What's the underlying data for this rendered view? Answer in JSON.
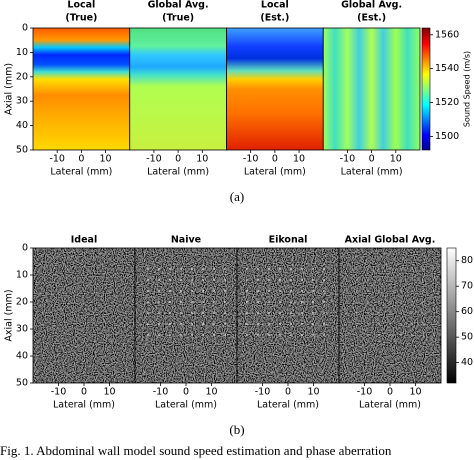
{
  "chart_data": [
    {
      "type": "heatmap",
      "panels": [
        {
          "title": [
            "Local",
            "(True)"
          ]
        },
        {
          "title": [
            "Global Avg.",
            "(True)"
          ]
        },
        {
          "title": [
            "Local",
            "(Est.)"
          ]
        },
        {
          "title": [
            "Global Avg.",
            "(Est.)"
          ]
        }
      ],
      "xlabel": "Lateral (mm)",
      "ylabel": "Axial (mm)",
      "xlim": [
        -20,
        20
      ],
      "xticks": [
        -10,
        0,
        10
      ],
      "ylim": [
        0,
        50
      ],
      "yticks": [
        0,
        10,
        20,
        30,
        40,
        50
      ],
      "colorbar": {
        "label": "Sound Speed (m/s)",
        "lim": [
          1492,
          1564
        ],
        "ticks": [
          1500,
          1520,
          1540,
          1560
        ],
        "colormap": "jet"
      },
      "caption": "(a)"
    },
    {
      "type": "heatmap",
      "panels": [
        {
          "title": [
            "Ideal"
          ]
        },
        {
          "title": [
            "Naive"
          ]
        },
        {
          "title": [
            "Eikonal"
          ]
        },
        {
          "title": [
            "Axial Global Avg."
          ]
        }
      ],
      "xlabel": "Lateral (mm)",
      "ylabel": "Axial (mm)",
      "xlim": [
        -20,
        20
      ],
      "xticks": [
        -10,
        0,
        10
      ],
      "ylim": [
        0,
        50
      ],
      "yticks": [
        0,
        10,
        20,
        30,
        40,
        50
      ],
      "colorbar": {
        "lim": [
          32,
          85
        ],
        "ticks": [
          40,
          50,
          60,
          70,
          80
        ],
        "colormap": "gray"
      },
      "caption": "(b)"
    }
  ],
  "figure_caption": "Fig. 1.  Abdominal wall model sound speed estimation and phase aberration"
}
